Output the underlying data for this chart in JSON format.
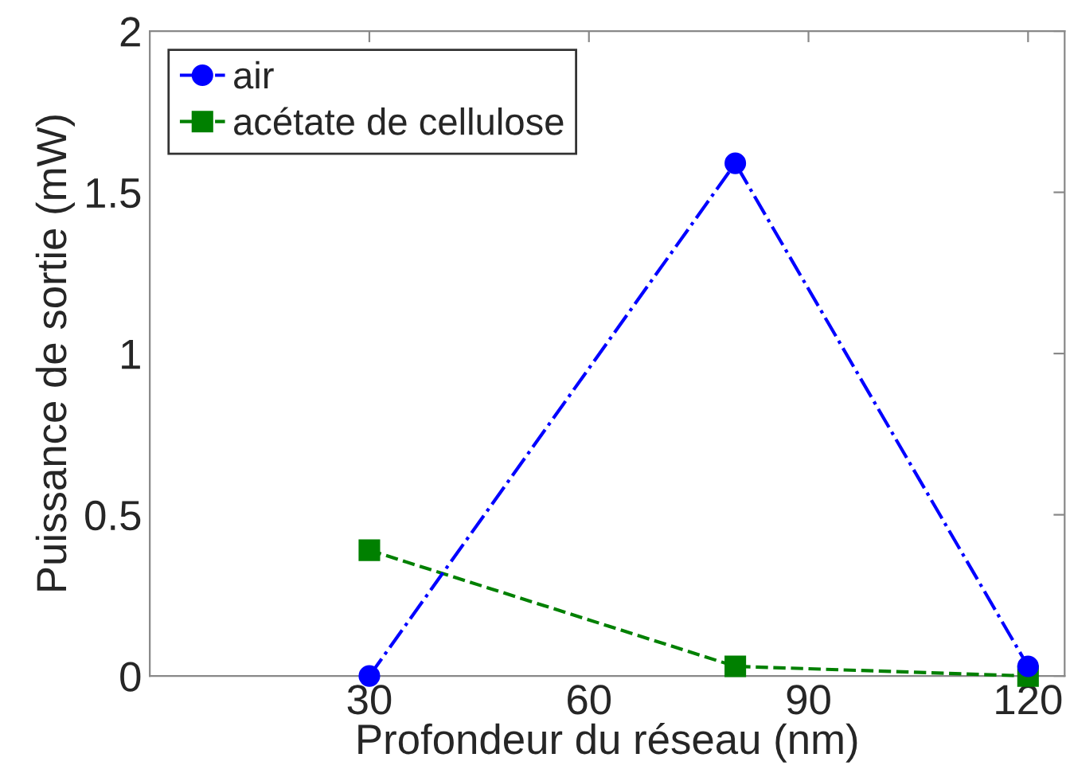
{
  "chart_data": {
    "type": "line",
    "xlabel": "Profondeur du réseau (nm)",
    "ylabel": "Puissance de sortie (mW)",
    "x": [
      30,
      80,
      120
    ],
    "series": [
      {
        "name": "air",
        "color": "#0000ff",
        "values": [
          0,
          1.59,
          0.03
        ],
        "marker": "circle",
        "line_style": "dashdot"
      },
      {
        "name": "acétate de cellulose",
        "color": "#008000",
        "values": [
          0.39,
          0.03,
          0.0
        ],
        "marker": "square",
        "line_style": "dashed"
      }
    ],
    "xlim": [
      0,
      125
    ],
    "xticks": [
      30,
      60,
      90,
      120
    ],
    "ylim": [
      0,
      2
    ],
    "yticks": [
      0,
      0.5,
      1,
      1.5,
      2
    ],
    "grid": false,
    "legend": "top left"
  }
}
